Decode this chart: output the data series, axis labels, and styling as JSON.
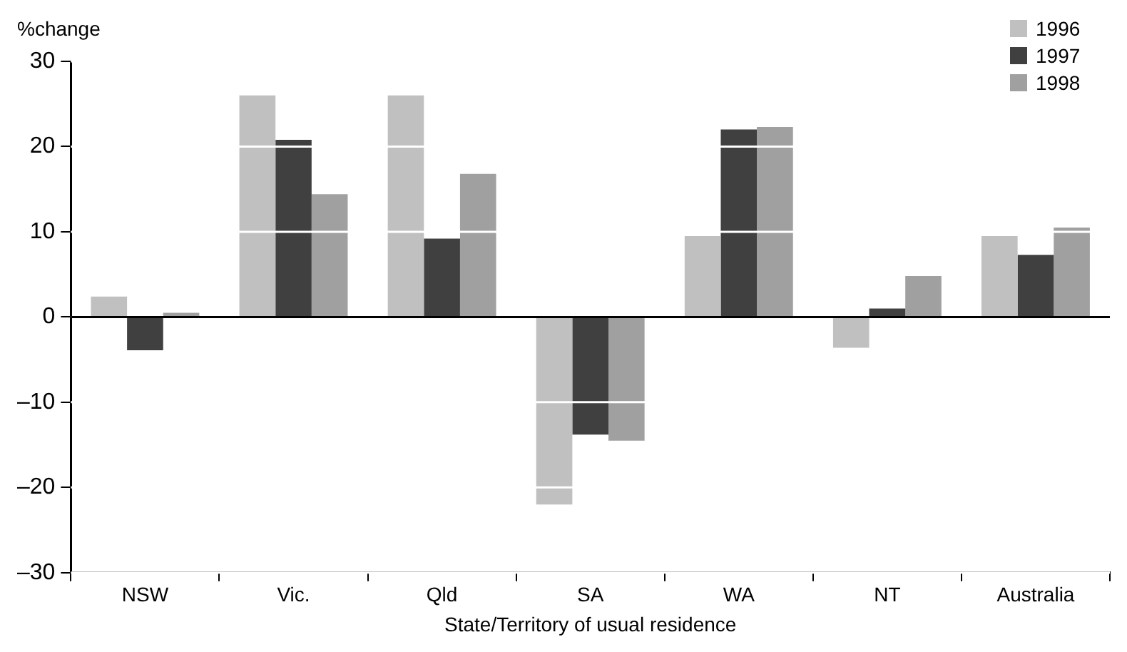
{
  "chart_data": {
    "type": "bar",
    "ylabel": "%change",
    "xlabel": "State/Territory of usual residence",
    "categories": [
      "NSW",
      "Vic.",
      "Qld",
      "SA",
      "WA",
      "NT",
      "Australia"
    ],
    "series": [
      {
        "name": "1996",
        "color": "#c0c0c0",
        "values": [
          2.4,
          26,
          26,
          -22,
          9.5,
          -3.6,
          9.5
        ]
      },
      {
        "name": "1997",
        "color": "#404040",
        "values": [
          -3.9,
          20.8,
          9.2,
          -13.8,
          22,
          1,
          7.3
        ]
      },
      {
        "name": "1998",
        "color": "#a0a0a0",
        "values": [
          0.5,
          14.4,
          16.8,
          -14.5,
          22.3,
          4.8,
          10.5
        ]
      }
    ],
    "ylim": [
      -30,
      30
    ],
    "yticks": [
      {
        "value": -30,
        "label": "–30"
      },
      {
        "value": -20,
        "label": "–20"
      },
      {
        "value": -10,
        "label": "–10"
      },
      0,
      10,
      20,
      30
    ],
    "ref_lines": [
      {
        "axis": "y",
        "value": 0,
        "color": "#000000"
      }
    ],
    "grid": "y",
    "legend": "top right"
  }
}
